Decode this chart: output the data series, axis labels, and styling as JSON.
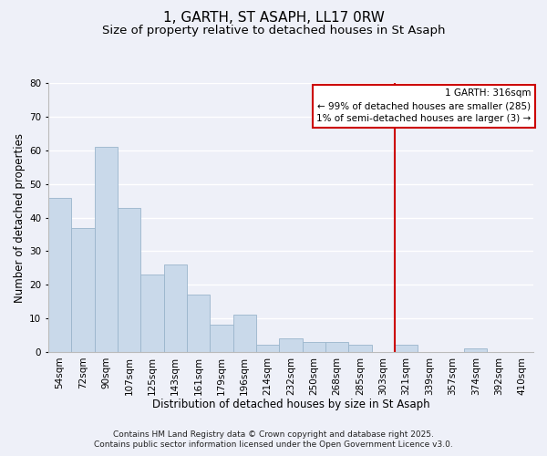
{
  "title": "1, GARTH, ST ASAPH, LL17 0RW",
  "subtitle": "Size of property relative to detached houses in St Asaph",
  "xlabel": "Distribution of detached houses by size in St Asaph",
  "ylabel": "Number of detached properties",
  "bar_values": [
    46,
    37,
    61,
    43,
    23,
    26,
    17,
    8,
    11,
    2,
    4,
    3,
    3,
    2,
    0,
    2,
    0,
    0,
    1,
    0,
    0
  ],
  "bar_labels": [
    "54sqm",
    "72sqm",
    "90sqm",
    "107sqm",
    "125sqm",
    "143sqm",
    "161sqm",
    "179sqm",
    "196sqm",
    "214sqm",
    "232sqm",
    "250sqm",
    "268sqm",
    "285sqm",
    "303sqm",
    "321sqm",
    "339sqm",
    "357sqm",
    "374sqm",
    "392sqm",
    "410sqm"
  ],
  "bar_color": "#c9d9ea",
  "bar_edge_color": "#9ab5cc",
  "ylim": [
    0,
    80
  ],
  "yticks": [
    0,
    10,
    20,
    30,
    40,
    50,
    60,
    70,
    80
  ],
  "vline_color": "#cc0000",
  "vline_index": 15,
  "legend_title": "1 GARTH: 316sqm",
  "legend_line1": "← 99% of detached houses are smaller (285)",
  "legend_line2": "1% of semi-detached houses are larger (3) →",
  "footer1": "Contains HM Land Registry data © Crown copyright and database right 2025.",
  "footer2": "Contains public sector information licensed under the Open Government Licence v3.0.",
  "background_color": "#eef0f8",
  "grid_color": "#ffffff",
  "title_fontsize": 11,
  "subtitle_fontsize": 9.5,
  "axis_label_fontsize": 8.5,
  "tick_fontsize": 7.5,
  "legend_fontsize": 7.5,
  "footer_fontsize": 6.5
}
